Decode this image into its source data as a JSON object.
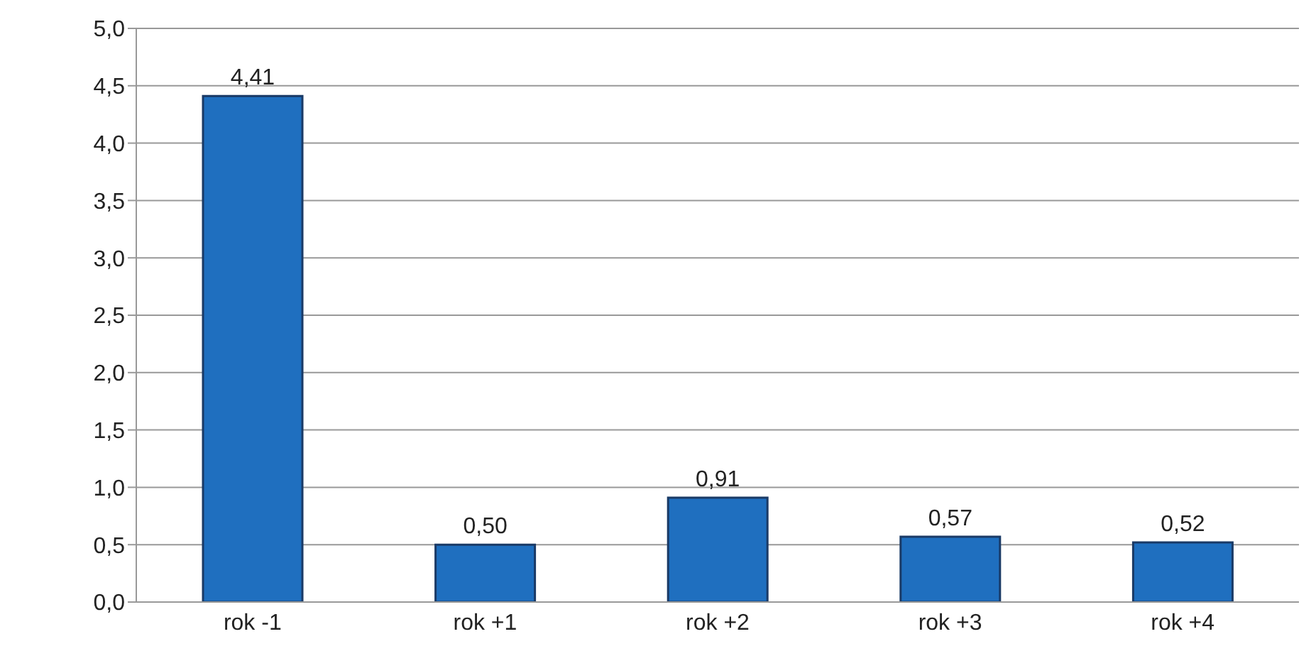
{
  "chart_data": {
    "type": "bar",
    "categories": [
      "rok -1",
      "rok +1",
      "rok +2",
      "rok +3",
      "rok +4"
    ],
    "values": [
      4.41,
      0.5,
      0.91,
      0.57,
      0.52
    ],
    "value_labels": [
      "4,41",
      "0,50",
      "0,91",
      "0,57",
      "0,52"
    ],
    "color": "#1f6fbf",
    "ylim": [
      0,
      5
    ],
    "yticks": [
      {
        "value": 0,
        "label": "0,0"
      },
      {
        "value": 0.5,
        "label": "0,5"
      },
      {
        "value": 1,
        "label": "1,0"
      },
      {
        "value": 1.5,
        "label": "1,5"
      },
      {
        "value": 2,
        "label": "2,0"
      },
      {
        "value": 2.5,
        "label": "2,5"
      },
      {
        "value": 3,
        "label": "3,0"
      },
      {
        "value": 3.5,
        "label": "3,5"
      },
      {
        "value": 4,
        "label": "4,0"
      },
      {
        "value": 4.5,
        "label": "4,5"
      },
      {
        "value": 5,
        "label": "5,0"
      }
    ],
    "grid": "y"
  }
}
